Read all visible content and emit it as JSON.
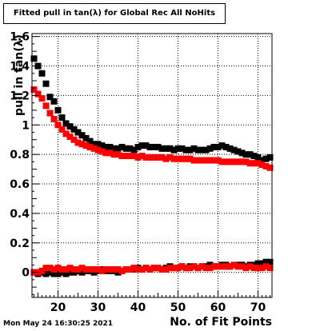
{
  "chart_data": {
    "type": "scatter",
    "title": "Fitted pull in tan(λ) for Global Rec All NoHits",
    "xlabel": "No. of Fit Points",
    "ylabel": "pull in tan(λ)",
    "xlim": [
      13.5,
      73.5
    ],
    "ylim": [
      -0.17,
      1.62
    ],
    "xticks": [
      20,
      30,
      40,
      50,
      60,
      70
    ],
    "yticks": [
      0,
      0.2,
      0.4,
      0.6,
      0.8,
      1,
      1.2,
      1.4,
      1.6
    ],
    "ytick_labels": [
      "0",
      "0.2",
      "0.4",
      "0.6",
      "0.8",
      "1",
      "1.2",
      "1.4",
      "1.6"
    ],
    "grid": true,
    "series": [
      {
        "color": "#000000",
        "x": [
          14,
          15,
          16,
          17,
          18,
          19,
          20,
          21,
          22,
          23,
          24,
          25,
          26,
          27,
          28,
          29,
          30,
          31,
          32,
          33,
          34,
          35,
          36,
          37,
          38,
          39,
          40,
          41,
          42,
          43,
          44,
          45,
          46,
          47,
          48,
          49,
          50,
          51,
          52,
          53,
          54,
          55,
          56,
          57,
          58,
          59,
          60,
          61,
          62,
          63,
          64,
          65,
          66,
          67,
          68,
          69,
          70,
          71,
          72,
          73
        ],
        "values": [
          1.45,
          1.4,
          1.35,
          1.28,
          1.19,
          1.16,
          1.1,
          1.05,
          1.01,
          0.99,
          0.97,
          0.95,
          0.93,
          0.91,
          0.89,
          0.87,
          0.87,
          0.86,
          0.85,
          0.85,
          0.84,
          0.84,
          0.85,
          0.84,
          0.84,
          0.83,
          0.85,
          0.86,
          0.86,
          0.85,
          0.85,
          0.85,
          0.84,
          0.84,
          0.84,
          0.83,
          0.84,
          0.84,
          0.83,
          0.83,
          0.84,
          0.83,
          0.83,
          0.83,
          0.84,
          0.85,
          0.85,
          0.86,
          0.85,
          0.84,
          0.83,
          0.82,
          0.81,
          0.8,
          0.8,
          0.79,
          0.78,
          0.76,
          0.77,
          0.78
        ]
      },
      {
        "color": "#ff0000",
        "x": [
          14,
          15,
          16,
          17,
          18,
          19,
          20,
          21,
          22,
          23,
          24,
          25,
          26,
          27,
          28,
          29,
          30,
          31,
          32,
          33,
          34,
          35,
          36,
          37,
          38,
          39,
          40,
          41,
          42,
          43,
          44,
          45,
          46,
          47,
          48,
          49,
          50,
          51,
          52,
          53,
          54,
          55,
          56,
          57,
          58,
          59,
          60,
          61,
          62,
          63,
          64,
          65,
          66,
          67,
          68,
          69,
          70,
          71,
          72,
          73
        ],
        "values": [
          1.24,
          1.21,
          1.18,
          1.13,
          1.08,
          1.04,
          1.0,
          0.97,
          0.94,
          0.92,
          0.9,
          0.88,
          0.87,
          0.86,
          0.85,
          0.84,
          0.83,
          0.82,
          0.81,
          0.81,
          0.8,
          0.8,
          0.79,
          0.79,
          0.79,
          0.79,
          0.78,
          0.79,
          0.78,
          0.78,
          0.78,
          0.78,
          0.78,
          0.77,
          0.78,
          0.77,
          0.77,
          0.77,
          0.77,
          0.77,
          0.76,
          0.76,
          0.76,
          0.76,
          0.76,
          0.76,
          0.76,
          0.75,
          0.75,
          0.75,
          0.75,
          0.75,
          0.75,
          0.75,
          0.74,
          0.74,
          0.74,
          0.73,
          0.72,
          0.71
        ]
      },
      {
        "color": "#000000",
        "x": [
          14,
          15,
          16,
          17,
          18,
          19,
          20,
          21,
          22,
          23,
          24,
          25,
          26,
          27,
          28,
          29,
          30,
          31,
          32,
          33,
          34,
          35,
          36,
          37,
          38,
          39,
          40,
          41,
          42,
          43,
          44,
          45,
          46,
          47,
          48,
          49,
          50,
          51,
          52,
          53,
          54,
          55,
          56,
          57,
          58,
          59,
          60,
          61,
          62,
          63,
          64,
          65,
          66,
          67,
          68,
          69,
          70,
          71,
          72,
          73
        ],
        "values": [
          0.0,
          -0.01,
          0.0,
          -0.01,
          0.0,
          -0.01,
          -0.01,
          0.0,
          -0.01,
          0.0,
          0.0,
          0.01,
          0.0,
          0.01,
          0.01,
          0.0,
          0.01,
          0.02,
          0.01,
          0.01,
          0.01,
          0.0,
          0.01,
          0.02,
          0.02,
          0.02,
          0.03,
          0.02,
          0.03,
          0.02,
          0.03,
          0.03,
          0.02,
          0.03,
          0.04,
          0.03,
          0.03,
          0.04,
          0.03,
          0.04,
          0.04,
          0.03,
          0.04,
          0.04,
          0.05,
          0.04,
          0.04,
          0.05,
          0.05,
          0.04,
          0.05,
          0.05,
          0.05,
          0.04,
          0.05,
          0.05,
          0.06,
          0.06,
          0.07,
          0.07
        ]
      },
      {
        "color": "#ff0000",
        "x": [
          14,
          15,
          16,
          17,
          18,
          19,
          20,
          21,
          22,
          23,
          24,
          25,
          26,
          27,
          28,
          29,
          30,
          31,
          32,
          33,
          34,
          35,
          36,
          37,
          38,
          39,
          40,
          41,
          42,
          43,
          44,
          45,
          46,
          47,
          48,
          49,
          50,
          51,
          52,
          53,
          54,
          55,
          56,
          57,
          58,
          59,
          60,
          61,
          62,
          63,
          64,
          65,
          66,
          67,
          68,
          69,
          70,
          71,
          72,
          73
        ],
        "values": [
          0.0,
          0.0,
          0.01,
          0.03,
          0.03,
          0.02,
          0.03,
          0.02,
          0.02,
          0.03,
          0.02,
          0.02,
          0.03,
          0.02,
          0.02,
          0.02,
          0.02,
          0.01,
          0.02,
          0.02,
          0.02,
          0.02,
          0.01,
          0.02,
          0.02,
          0.03,
          0.02,
          0.02,
          0.03,
          0.02,
          0.03,
          0.03,
          0.02,
          0.02,
          0.03,
          0.03,
          0.03,
          0.04,
          0.03,
          0.03,
          0.04,
          0.03,
          0.04,
          0.03,
          0.03,
          0.04,
          0.04,
          0.04,
          0.04,
          0.04,
          0.05,
          0.04,
          0.04,
          0.03,
          0.04,
          0.03,
          0.03,
          0.03,
          0.04,
          0.03
        ]
      }
    ]
  },
  "footer": {
    "timestamp": "Mon May 24 16:30:25 2021"
  }
}
